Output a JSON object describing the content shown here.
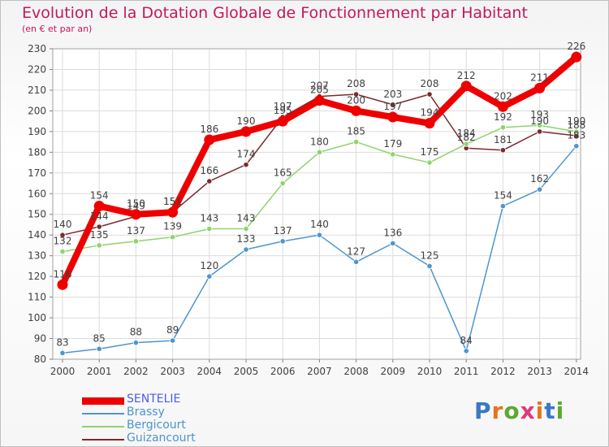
{
  "title": "Evolution de la Dotation Globale de Fonctionnement par Habitant",
  "subtitle": "(en € et par an)",
  "logo": {
    "text": "Proxiti",
    "letter_colors": [
      "#3a78c2",
      "#e8731f",
      "#5aaa2e",
      "#e03a7a",
      "#e8731f",
      "#3a78c2",
      "#5aaa2e"
    ]
  },
  "chart_data": {
    "type": "line",
    "categories": [
      "2000",
      "2001",
      "2002",
      "2003",
      "2004",
      "2005",
      "2006",
      "2007",
      "2008",
      "2009",
      "2010",
      "2011",
      "2012",
      "2013",
      "2014"
    ],
    "ylim": [
      80,
      230
    ],
    "yticks": [
      80,
      90,
      100,
      110,
      120,
      130,
      140,
      150,
      160,
      170,
      180,
      190,
      200,
      210,
      220,
      230
    ],
    "grid": true,
    "legend_placement": "bottom-left",
    "series": [
      {
        "name": "Guizancourt",
        "color": "#7b2a2e",
        "values": [
          140,
          144,
          149,
          151,
          166,
          174,
          197,
          207,
          208,
          203,
          208,
          182,
          181,
          190,
          188
        ],
        "labels": [
          "140",
          "144",
          "149",
          "151",
          "166",
          "174",
          "197",
          "207",
          "208",
          "203",
          "208",
          "182",
          "181",
          "190",
          "188"
        ]
      },
      {
        "name": "Bergicourt",
        "color": "#8ed46a",
        "values": [
          132,
          135,
          137,
          139,
          143,
          143,
          165,
          180,
          185,
          179,
          175,
          184,
          192,
          193,
          190
        ],
        "labels": [
          "132",
          "135",
          "137",
          "139",
          "143",
          "143",
          "165",
          "180",
          "185",
          "179",
          "175",
          "184",
          "192",
          "193",
          "190"
        ]
      },
      {
        "name": "Brassy",
        "color": "#4e94cf",
        "values": [
          83,
          85,
          88,
          89,
          120,
          133,
          137,
          140,
          127,
          136,
          125,
          84,
          154,
          162,
          183
        ],
        "labels": [
          "83",
          "85",
          "88",
          "89",
          "120",
          "133",
          "137",
          "140",
          "127",
          "136",
          "125",
          "84",
          "154",
          "162",
          "183"
        ]
      },
      {
        "name": "SENTELIE",
        "color": "#ee0000",
        "values": [
          116,
          154,
          150,
          151,
          186,
          190,
          195,
          205,
          200,
          197,
          194,
          212,
          202,
          211,
          226
        ],
        "labels": [
          "116",
          "154",
          "150",
          "151",
          "186",
          "190",
          "195",
          "205",
          "200",
          "197",
          "194",
          "212",
          "202",
          "211",
          "226"
        ]
      }
    ],
    "legend": [
      {
        "name": "SENTELIE",
        "color": "#ee0000",
        "label_color": "#4a5ee8",
        "thickness": 9
      },
      {
        "name": "Brassy",
        "color": "#4e94cf",
        "label_color": "#4e94cf",
        "thickness": 2
      },
      {
        "name": "Bergicourt",
        "color": "#8ed46a",
        "label_color": "#4e94cf",
        "thickness": 2
      },
      {
        "name": "Guizancourt",
        "color": "#7b2a2e",
        "label_color": "#4e94cf",
        "thickness": 2
      }
    ]
  }
}
